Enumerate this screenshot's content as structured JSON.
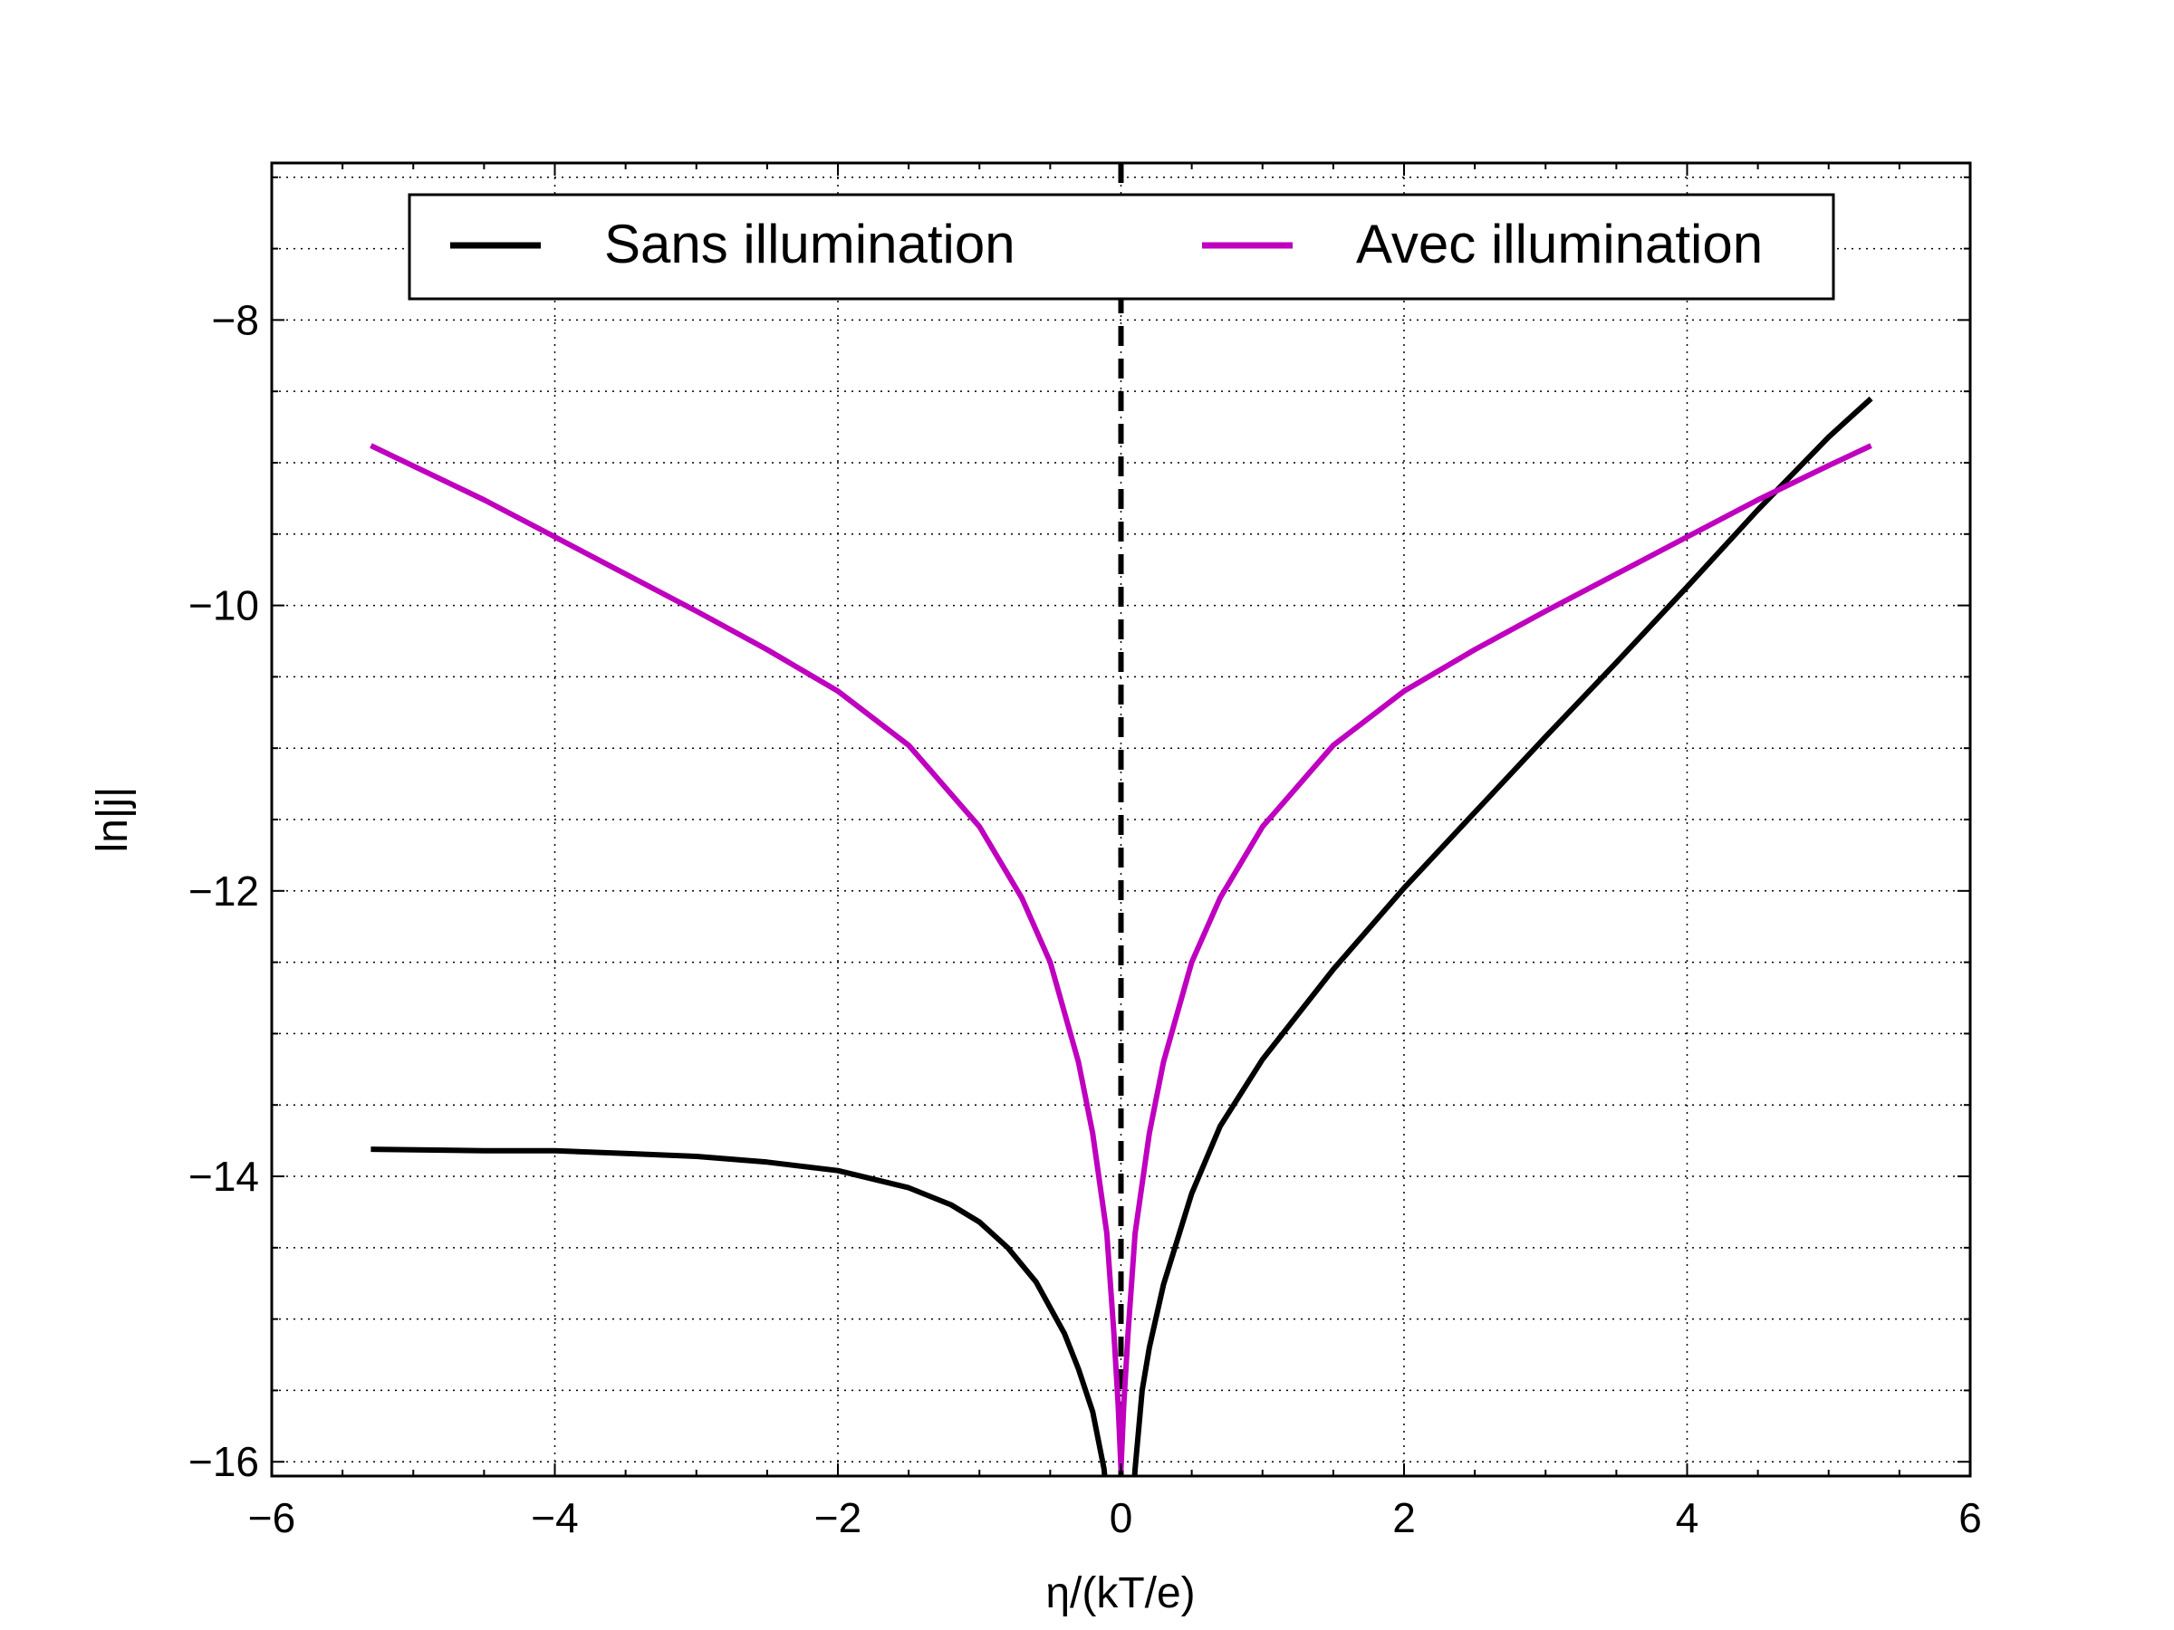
{
  "chart_data": {
    "type": "line",
    "xlabel": "η/(kT/e)",
    "ylabel": "ln|j|",
    "xlim": [
      -6,
      6
    ],
    "ylim": [
      -16.1,
      -6.9
    ],
    "x_ticks": [
      -6,
      -4,
      -2,
      0,
      2,
      4,
      6
    ],
    "y_ticks": [
      -8,
      -10,
      -12,
      -14,
      -16
    ],
    "x_tick_labels": [
      "−6",
      "−4",
      "−2",
      "0",
      "2",
      "4",
      "6"
    ],
    "y_tick_labels": [
      "−8",
      "−10",
      "−12",
      "−14",
      "−16"
    ],
    "grid": true,
    "grid_style": "dotted",
    "reference_line": {
      "x": 0,
      "style": "dashed",
      "color": "#000000"
    },
    "legend": {
      "placement": "top-center",
      "columns": 2
    },
    "series": [
      {
        "name": "Sans illumination",
        "color": "#000000",
        "x": [
          -5.3,
          -4.5,
          -4.0,
          -3.5,
          -3.0,
          -2.5,
          -2.0,
          -1.5,
          -1.2,
          -1.0,
          -0.8,
          -0.6,
          -0.4,
          -0.3,
          -0.2,
          -0.12,
          -0.05,
          0.05,
          0.1,
          0.15,
          0.2,
          0.3,
          0.5,
          0.7,
          1.0,
          1.5,
          2.0,
          2.5,
          3.0,
          3.5,
          4.0,
          4.5,
          5.0,
          5.3
        ],
        "y": [
          -13.81,
          -13.82,
          -13.82,
          -13.84,
          -13.86,
          -13.9,
          -13.96,
          -14.08,
          -14.2,
          -14.32,
          -14.5,
          -14.74,
          -15.1,
          -15.35,
          -15.65,
          -16.05,
          -16.8,
          -16.8,
          -16.05,
          -15.5,
          -15.2,
          -14.76,
          -14.12,
          -13.65,
          -13.18,
          -12.55,
          -11.98,
          -11.45,
          -10.92,
          -10.4,
          -9.87,
          -9.33,
          -8.82,
          -8.55
        ]
      },
      {
        "name": "Avec illumination",
        "color": "#bf00bf",
        "x": [
          -5.3,
          -4.5,
          -4.0,
          -3.5,
          -3.0,
          -2.5,
          -2.0,
          -1.5,
          -1.0,
          -0.7,
          -0.5,
          -0.3,
          -0.2,
          -0.1,
          -0.05,
          -0.02,
          0.0,
          0.02,
          0.05,
          0.1,
          0.2,
          0.3,
          0.5,
          0.7,
          1.0,
          1.5,
          2.0,
          2.5,
          3.0,
          3.5,
          4.0,
          4.5,
          5.0,
          5.3
        ],
        "y": [
          -8.88,
          -9.26,
          -9.52,
          -9.78,
          -10.04,
          -10.31,
          -10.6,
          -10.98,
          -11.55,
          -12.05,
          -12.5,
          -13.2,
          -13.7,
          -14.4,
          -15.1,
          -15.6,
          -16.05,
          -15.6,
          -15.1,
          -14.4,
          -13.7,
          -13.2,
          -12.5,
          -12.05,
          -11.55,
          -10.98,
          -10.6,
          -10.31,
          -10.04,
          -9.78,
          -9.52,
          -9.26,
          -9.02,
          -8.88
        ]
      }
    ]
  }
}
